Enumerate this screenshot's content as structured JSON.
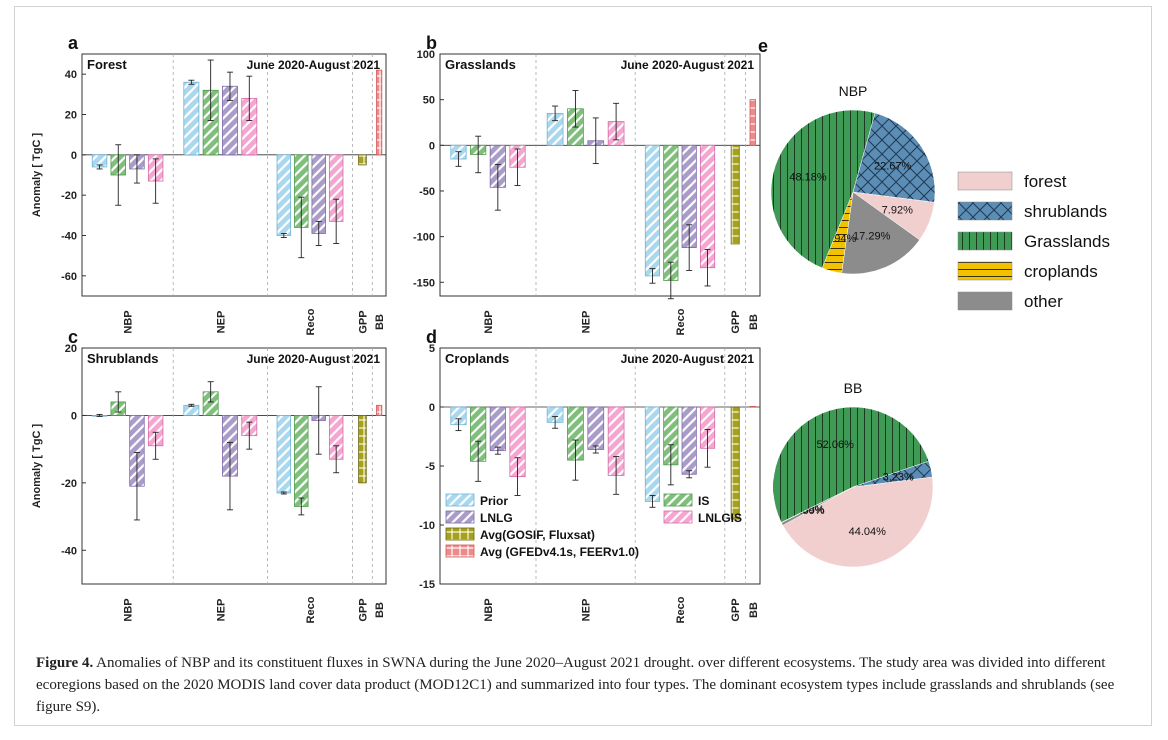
{
  "figure": {
    "caption_label": "Figure 4.",
    "caption_text": "Anomalies of NBP and its constituent fluxes in SWNA during the June 2020–August 2021 drought. over different ecosystems. The study area was divided into different ecoregions based on the 2020 MODIS land cover data product (MOD12C1) and summarized into four types. The dominant ecosystem types include grasslands and shrublands (see figure S9).",
    "ylabel": "Anomaly [ TgC ]",
    "period_label": "June 2020-August 2021",
    "legend": [
      "Prior",
      "IS",
      "LNLG",
      "LNLGIS",
      "Avg(GOSIF, Fluxsat)",
      "Avg (GFEDv4.1s, FEERv1.0)"
    ]
  },
  "colors": {
    "prior": "#a9d8ee",
    "is": "#7fbf7b",
    "lnlg": "#a99cc9",
    "lnlgis": "#f4a6d0",
    "gpp": "#a6a11a",
    "bb": "#f08a8a",
    "forest": "#f1cfcf",
    "shrublands": "#5b8db5",
    "grasslands": "#3f9a55",
    "croplands": "#f2c200",
    "other": "#8c8c8c"
  },
  "chart_data": [
    {
      "type": "bar",
      "panel": "a",
      "title": "Forest",
      "ylim": [
        -70,
        50
      ],
      "yticks": [
        -60,
        -40,
        -20,
        0,
        20,
        40
      ],
      "categories": [
        "NBP",
        "NEP",
        "Reco",
        "GPP",
        "BB"
      ],
      "series": [
        {
          "name": "Prior",
          "values": [
            -6,
            36,
            -40,
            null,
            null
          ],
          "errors": [
            1,
            1,
            1,
            null,
            null
          ]
        },
        {
          "name": "IS",
          "values": [
            -10,
            32,
            -36,
            null,
            null
          ],
          "errors": [
            15,
            15,
            15,
            null,
            null
          ]
        },
        {
          "name": "LNLG",
          "values": [
            -7,
            34,
            -39,
            null,
            null
          ],
          "errors": [
            7,
            7,
            6,
            null,
            null
          ]
        },
        {
          "name": "LNLGIS",
          "values": [
            -13,
            28,
            -33,
            null,
            null
          ],
          "errors": [
            11,
            11,
            11,
            null,
            null
          ]
        },
        {
          "name": "Avg(GOSIF, Fluxsat)",
          "values": [
            null,
            null,
            null,
            -5,
            null
          ],
          "errors": [
            null,
            null,
            null,
            null,
            null
          ]
        },
        {
          "name": "Avg (GFEDv4.1s, FEERv1.0)",
          "values": [
            null,
            null,
            null,
            null,
            42
          ],
          "errors": [
            null,
            null,
            null,
            null,
            null
          ]
        }
      ]
    },
    {
      "type": "bar",
      "panel": "b",
      "title": "Grasslands",
      "ylim": [
        -165,
        100
      ],
      "yticks": [
        -150,
        -100,
        -50,
        0,
        50,
        100
      ],
      "categories": [
        "NBP",
        "NEP",
        "Reco",
        "GPP",
        "BB"
      ],
      "series": [
        {
          "name": "Prior",
          "values": [
            -15,
            35,
            -143,
            null,
            null
          ],
          "errors": [
            8,
            8,
            8,
            null,
            null
          ]
        },
        {
          "name": "IS",
          "values": [
            -10,
            40,
            -148,
            null,
            null
          ],
          "errors": [
            20,
            20,
            20,
            null,
            null
          ]
        },
        {
          "name": "LNLG",
          "values": [
            -46,
            5,
            -112,
            null,
            null
          ],
          "errors": [
            25,
            25,
            25,
            null,
            null
          ]
        },
        {
          "name": "LNLGIS",
          "values": [
            -24,
            26,
            -134,
            null,
            null
          ],
          "errors": [
            20,
            20,
            20,
            null,
            null
          ]
        },
        {
          "name": "Avg(GOSIF, Fluxsat)",
          "values": [
            null,
            null,
            null,
            -108,
            null
          ],
          "errors": [
            null,
            null,
            null,
            null,
            null
          ]
        },
        {
          "name": "Avg (GFEDv4.1s, FEERv1.0)",
          "values": [
            null,
            null,
            null,
            null,
            50
          ],
          "errors": [
            null,
            null,
            null,
            null,
            null
          ]
        }
      ]
    },
    {
      "type": "bar",
      "panel": "c",
      "title": "Shrublands",
      "ylim": [
        -50,
        20
      ],
      "yticks": [
        -40,
        -20,
        0,
        20
      ],
      "categories": [
        "NBP",
        "NEP",
        "Reco",
        "GPP",
        "BB"
      ],
      "series": [
        {
          "name": "Prior",
          "values": [
            0,
            3,
            -23,
            null,
            null
          ],
          "errors": [
            0.3,
            0.3,
            0.3,
            null,
            null
          ]
        },
        {
          "name": "IS",
          "values": [
            4,
            7,
            -27,
            null,
            null
          ],
          "errors": [
            3,
            3,
            2.5,
            null,
            null
          ]
        },
        {
          "name": "LNLG",
          "values": [
            -21,
            -18,
            -1.5,
            null,
            null
          ],
          "errors": [
            10,
            10,
            10,
            null,
            null
          ]
        },
        {
          "name": "LNLGIS",
          "values": [
            -9,
            -6,
            -13,
            null,
            null
          ],
          "errors": [
            4,
            4,
            4,
            null,
            null
          ]
        },
        {
          "name": "Avg(GOSIF, Fluxsat)",
          "values": [
            null,
            null,
            null,
            -20,
            null
          ],
          "errors": [
            null,
            null,
            null,
            null,
            null
          ]
        },
        {
          "name": "Avg (GFEDv4.1s, FEERv1.0)",
          "values": [
            null,
            null,
            null,
            null,
            3
          ],
          "errors": [
            null,
            null,
            null,
            null,
            null
          ]
        }
      ]
    },
    {
      "type": "bar",
      "panel": "d",
      "title": "Croplands",
      "ylim": [
        -15,
        5
      ],
      "yticks": [
        -15,
        -10,
        -5,
        0,
        5
      ],
      "categories": [
        "NBP",
        "NEP",
        "Reco",
        "GPP",
        "BB"
      ],
      "series": [
        {
          "name": "Prior",
          "values": [
            -1.5,
            -1.3,
            -8,
            null,
            null
          ],
          "errors": [
            0.5,
            0.5,
            0.5,
            null,
            null
          ]
        },
        {
          "name": "IS",
          "values": [
            -4.6,
            -4.5,
            -4.9,
            null,
            null
          ],
          "errors": [
            1.7,
            1.7,
            1.7,
            null,
            null
          ]
        },
        {
          "name": "LNLG",
          "values": [
            -3.7,
            -3.6,
            -5.7,
            null,
            null
          ],
          "errors": [
            0.3,
            0.3,
            0.3,
            null,
            null
          ]
        },
        {
          "name": "LNLGIS",
          "values": [
            -5.9,
            -5.8,
            -3.5,
            null,
            null
          ],
          "errors": [
            1.6,
            1.6,
            1.6,
            null,
            null
          ]
        },
        {
          "name": "Avg(GOSIF, Fluxsat)",
          "values": [
            null,
            null,
            null,
            -9.5,
            null
          ],
          "errors": [
            null,
            null,
            null,
            null,
            null
          ]
        },
        {
          "name": "Avg (GFEDv4.1s, FEERv1.0)",
          "values": [
            null,
            null,
            null,
            null,
            0.05
          ],
          "errors": [
            null,
            null,
            null,
            null,
            null
          ]
        }
      ]
    },
    {
      "type": "pie",
      "panel": "e",
      "title": "NBP",
      "slices": [
        {
          "name": "forest",
          "value": 7.92,
          "label": "7.92%"
        },
        {
          "name": "other",
          "value": 17.29,
          "label": "17.29%"
        },
        {
          "name": "croplands",
          "value": 3.94,
          "label": "3.94%"
        },
        {
          "name": "Grasslands",
          "value": 48.18,
          "label": "48.18%"
        },
        {
          "name": "shrublands",
          "value": 22.67,
          "label": "22.67%"
        }
      ]
    },
    {
      "type": "pie",
      "panel": "e",
      "title": "BB",
      "slices": [
        {
          "name": "forest",
          "value": 44.04,
          "label": "44.04%"
        },
        {
          "name": "other",
          "value": 0.59,
          "label": "0.59%"
        },
        {
          "name": "croplands",
          "value": 0.08,
          "label": "0.08%"
        },
        {
          "name": "Grasslands",
          "value": 52.06,
          "label": "52.06%"
        },
        {
          "name": "shrublands",
          "value": 3.23,
          "label": "3.23%"
        }
      ]
    }
  ],
  "pie_legend": [
    "forest",
    "shrublands",
    "Grasslands",
    "croplands",
    "other"
  ]
}
